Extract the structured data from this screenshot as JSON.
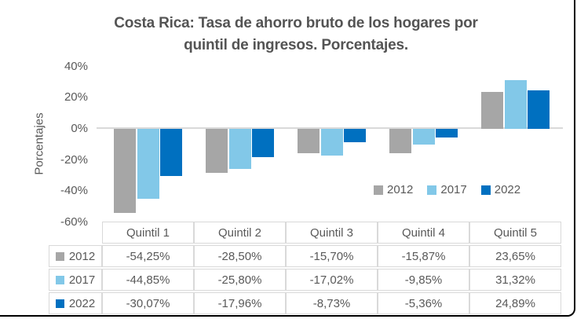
{
  "chart": {
    "title_lines": [
      "Costa Rica: Tasa de ahorro bruto de los hogares por",
      "quintil de ingresos. Porcentajes."
    ],
    "y_axis_label": "Porcentajes",
    "colors": {
      "text": "#595959",
      "grid": "#d9d9d9",
      "frame": "#000000"
    }
  },
  "chart_data": {
    "type": "bar",
    "title": "Costa Rica: Tasa de ahorro bruto de los hogares por quintil de ingresos. Porcentajes.",
    "xlabel": "",
    "ylabel": "Porcentajes",
    "categories": [
      "Quintil 1",
      "Quintil 2",
      "Quintil 3",
      "Quintil 4",
      "Quintil 5"
    ],
    "series": [
      {
        "name": "2012",
        "color": "#a6a6a6",
        "values": [
          -54.25,
          -28.5,
          -15.7,
          -15.87,
          23.65
        ]
      },
      {
        "name": "2017",
        "color": "#82c8e8",
        "values": [
          -44.85,
          -25.8,
          -17.02,
          -9.85,
          31.32
        ]
      },
      {
        "name": "2022",
        "color": "#0070c0",
        "values": [
          -30.07,
          -17.96,
          -8.73,
          -5.36,
          24.89
        ]
      }
    ],
    "ylim": [
      -60,
      40
    ],
    "yticks": [
      "40%",
      "20%",
      "0%",
      "-20%",
      "-40%",
      "-60%"
    ],
    "grid": "zero-line-only",
    "legend_position": "inside-bottom-right",
    "data_table": {
      "rows": [
        {
          "name": "2012",
          "cells": [
            "-54,25%",
            "-28,50%",
            "-15,70%",
            "-15,87%",
            "23,65%"
          ]
        },
        {
          "name": "2017",
          "cells": [
            "-44,85%",
            "-25,80%",
            "-17,02%",
            "-9,85%",
            "31,32%"
          ]
        },
        {
          "name": "2022",
          "cells": [
            "-30,07%",
            "-17,96%",
            "-8,73%",
            "-5,36%",
            "24,89%"
          ]
        }
      ]
    }
  }
}
